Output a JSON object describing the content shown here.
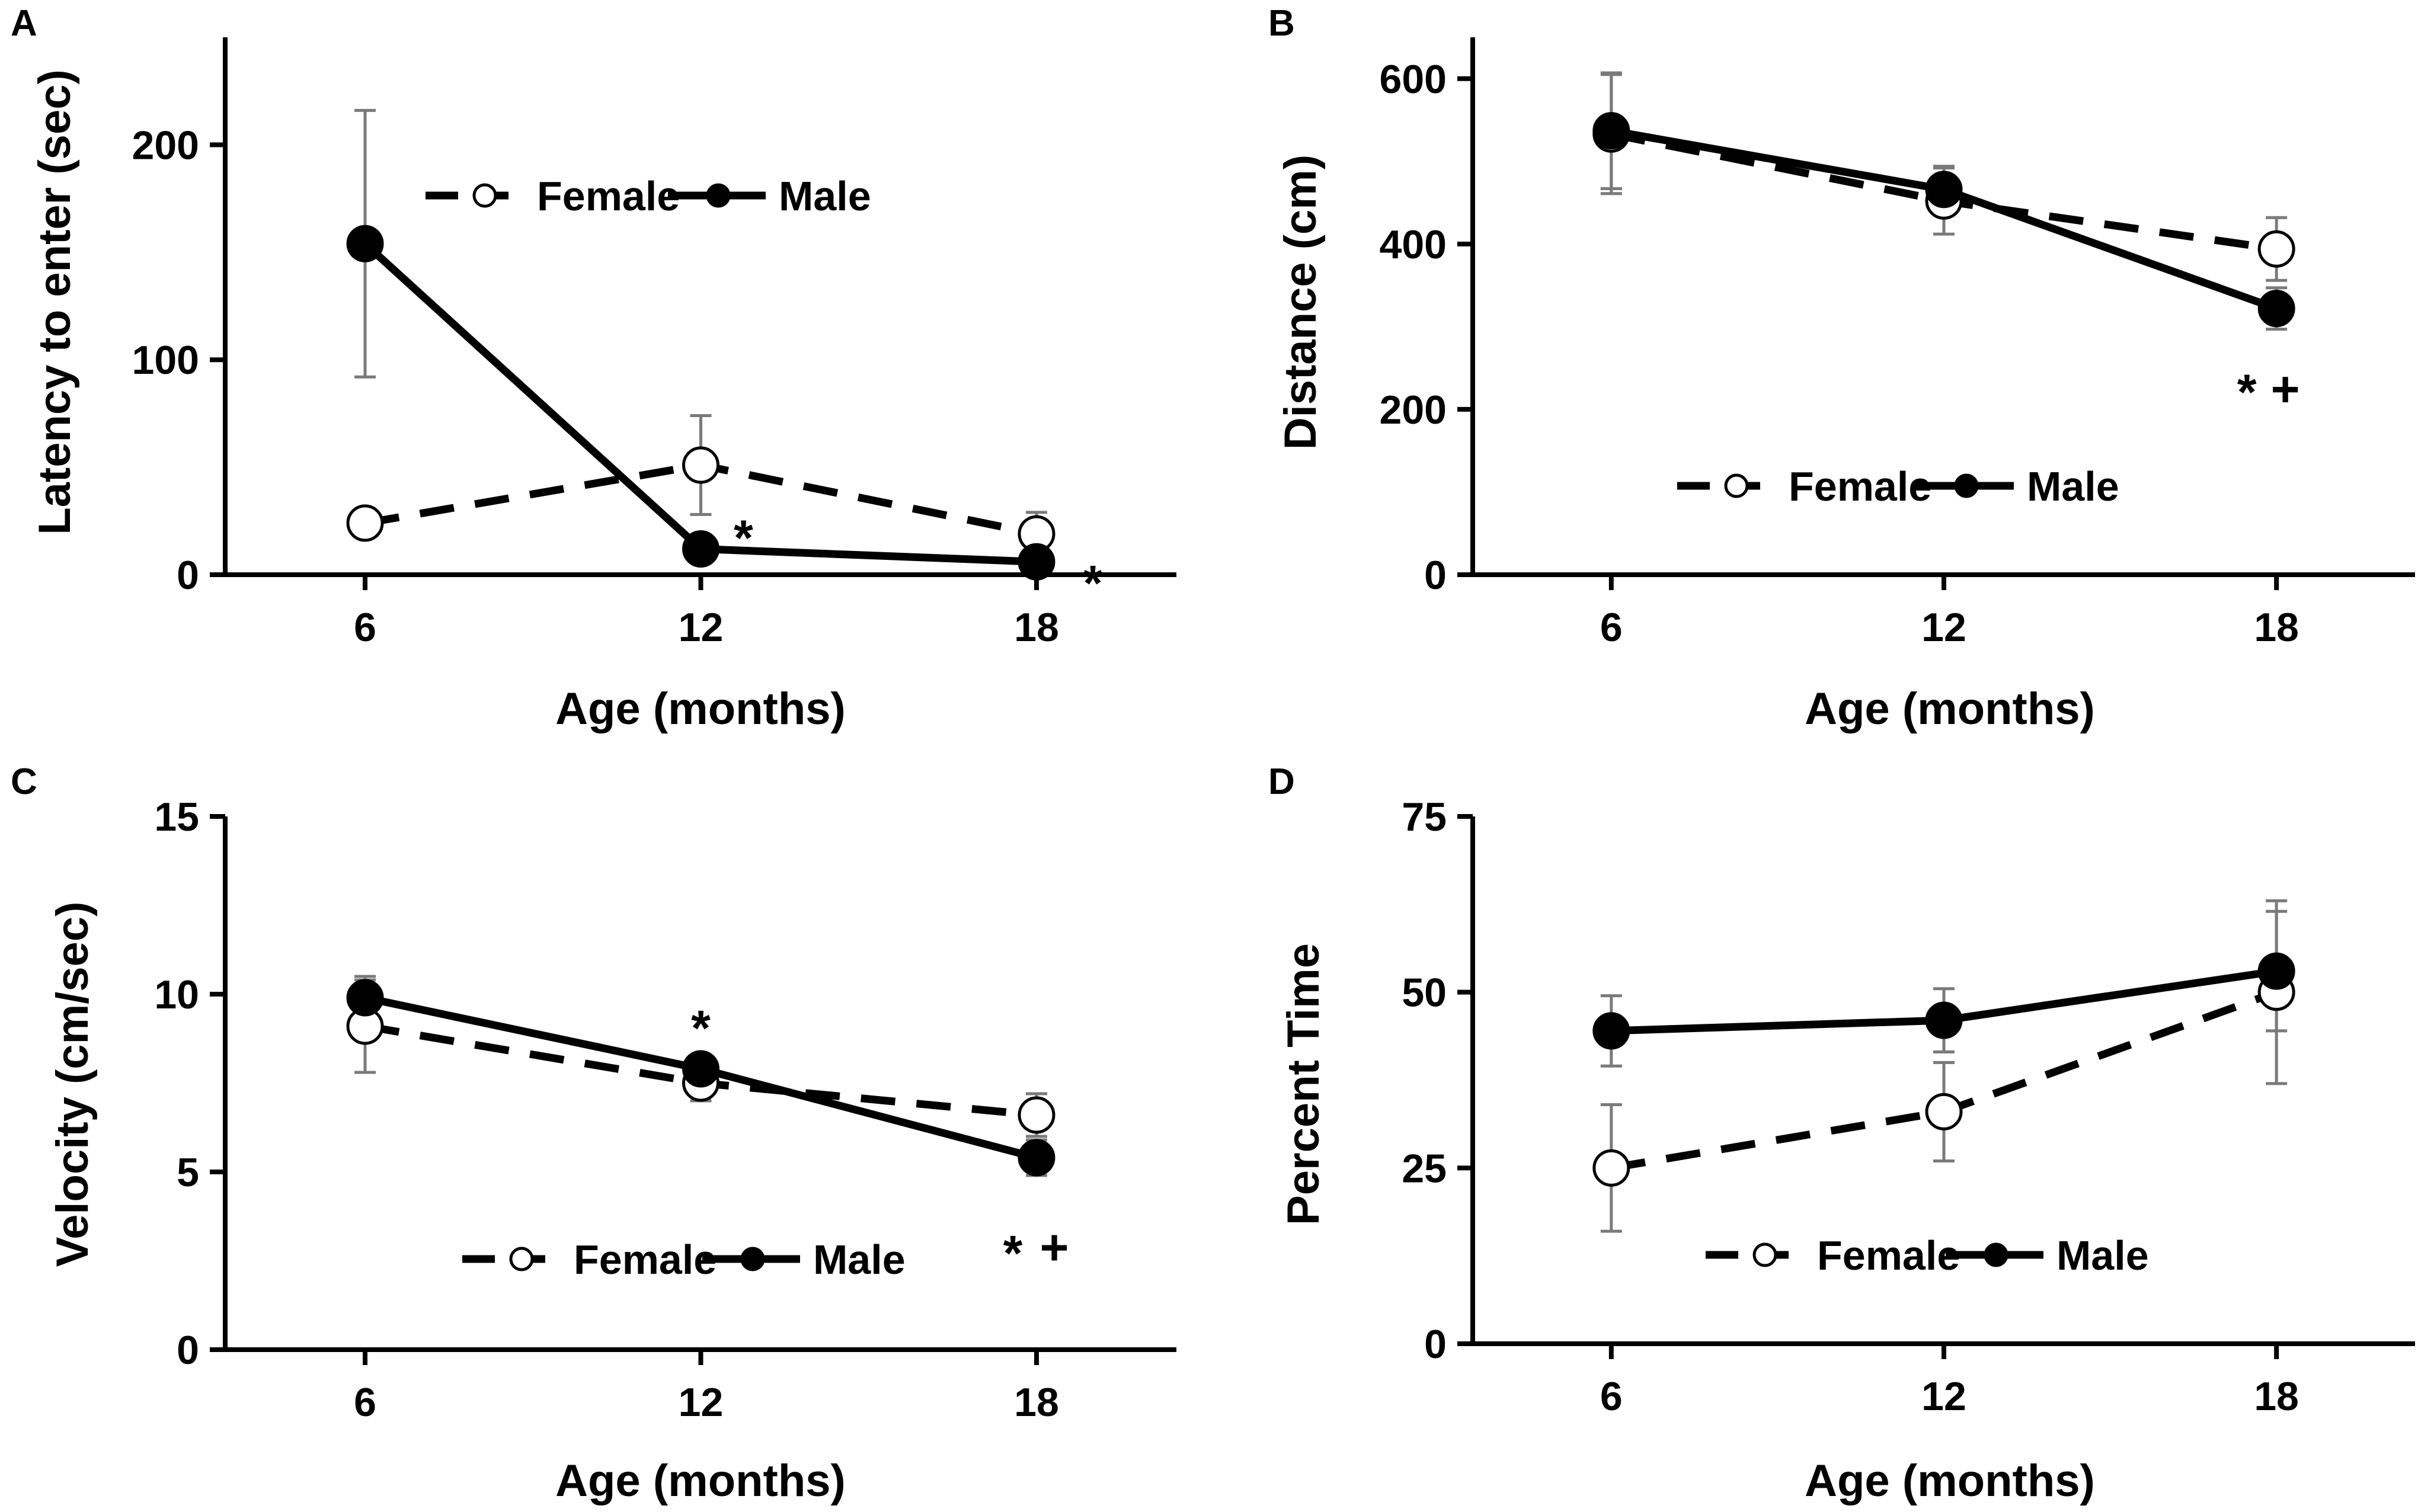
{
  "colors": {
    "line": "#000000",
    "female_fill": "#ffffff",
    "male_fill": "#000000",
    "error_bar": "#7a7a7a"
  },
  "chart_data": [
    {
      "type": "line",
      "panel": "A",
      "title": "",
      "xlabel": "Age (months)",
      "ylabel": "Latency to enter (sec)",
      "categories": [
        "6",
        "12",
        "18"
      ],
      "x": [
        6,
        12,
        18
      ],
      "xlim": [
        3.5,
        20.5
      ],
      "ylim": [
        0,
        250
      ],
      "yticks": [
        0,
        100,
        200
      ],
      "legend_position": "top-center",
      "series": [
        {
          "name": "Female",
          "style": "dashed",
          "marker": "open-circle",
          "values": [
            24,
            51,
            19
          ],
          "errors": [
            null,
            23,
            10
          ]
        },
        {
          "name": "Male",
          "style": "solid",
          "marker": "filled-circle",
          "values": [
            154,
            12,
            6
          ],
          "errors": [
            62,
            null,
            null
          ]
        }
      ],
      "annotations": [
        {
          "text": "*",
          "x": 12
        },
        {
          "text": "*",
          "x": 18
        }
      ]
    },
    {
      "type": "line",
      "panel": "B",
      "title": "",
      "xlabel": "Age (months)",
      "ylabel": "Distance (cm)",
      "categories": [
        "6",
        "12",
        "18"
      ],
      "x": [
        6,
        12,
        18
      ],
      "xlim": [
        3.5,
        20.5
      ],
      "ylim": [
        0,
        650
      ],
      "yticks": [
        0,
        200,
        400,
        600
      ],
      "legend_position": "bottom-center",
      "series": [
        {
          "name": "Female",
          "style": "dashed",
          "marker": "open-circle",
          "values": [
            533,
            452,
            394
          ],
          "errors": [
            72,
            40,
            38
          ]
        },
        {
          "name": "Male",
          "style": "solid",
          "marker": "filled-circle",
          "values": [
            537,
            466,
            322
          ],
          "errors": [
            70,
            28,
            25
          ]
        }
      ],
      "annotations": [
        {
          "text": "*",
          "x": 18
        },
        {
          "text": "+",
          "x": 18
        }
      ]
    },
    {
      "type": "line",
      "panel": "C",
      "title": "",
      "xlabel": "Age (months)",
      "ylabel": "Velocity (cm/sec)",
      "categories": [
        "6",
        "12",
        "18"
      ],
      "x": [
        6,
        12,
        18
      ],
      "xlim": [
        3.5,
        20.5
      ],
      "ylim": [
        0,
        15
      ],
      "yticks": [
        0,
        5,
        10,
        15
      ],
      "legend_position": "bottom-center",
      "series": [
        {
          "name": "Female",
          "style": "dashed",
          "marker": "open-circle",
          "values": [
            9.1,
            7.5,
            6.6
          ],
          "errors": [
            1.3,
            0.5,
            0.6
          ]
        },
        {
          "name": "Male",
          "style": "solid",
          "marker": "filled-circle",
          "values": [
            9.9,
            7.9,
            5.4
          ],
          "errors": [
            0.6,
            0.4,
            0.5
          ]
        }
      ],
      "annotations": [
        {
          "text": "*",
          "x": 12
        },
        {
          "text": "*",
          "x": 18
        },
        {
          "text": "+",
          "x": 18
        }
      ]
    },
    {
      "type": "line",
      "panel": "D",
      "title": "",
      "xlabel": "Age (months)",
      "ylabel": "Percent Time",
      "categories": [
        "6",
        "12",
        "18"
      ],
      "x": [
        6,
        12,
        18
      ],
      "xlim": [
        3.5,
        20.5
      ],
      "ylim": [
        0,
        75
      ],
      "yticks": [
        0,
        25,
        50,
        75
      ],
      "legend_position": "bottom-center",
      "series": [
        {
          "name": "Female",
          "style": "dashed",
          "marker": "open-circle",
          "values": [
            25,
            33,
            50
          ],
          "errors": [
            9,
            7,
            13
          ]
        },
        {
          "name": "Male",
          "style": "solid",
          "marker": "filled-circle",
          "values": [
            44.5,
            46,
            53
          ],
          "errors": [
            5,
            4.5,
            8.5
          ]
        }
      ],
      "annotations": []
    }
  ]
}
